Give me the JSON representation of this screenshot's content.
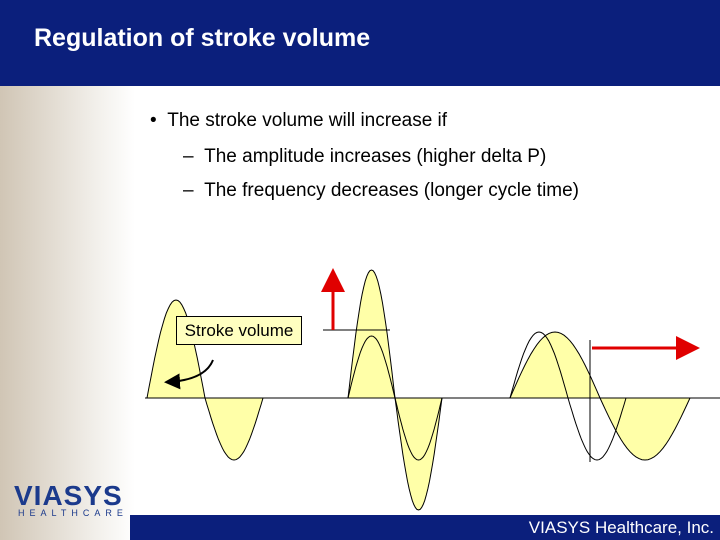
{
  "header": {
    "title": "Regulation of stroke volume"
  },
  "bullets": [
    {
      "text": "The stroke volume will increase if",
      "subs": [
        "The amplitude increases (higher delta P)",
        "The frequency decreases (longer cycle time)"
      ]
    }
  ],
  "figure": {
    "label": "Stroke volume"
  },
  "logo": {
    "name": "VIASYS",
    "subtitle": "HEALTHCARE"
  },
  "footer": {
    "text": "VIASYS Healthcare, Inc."
  }
}
